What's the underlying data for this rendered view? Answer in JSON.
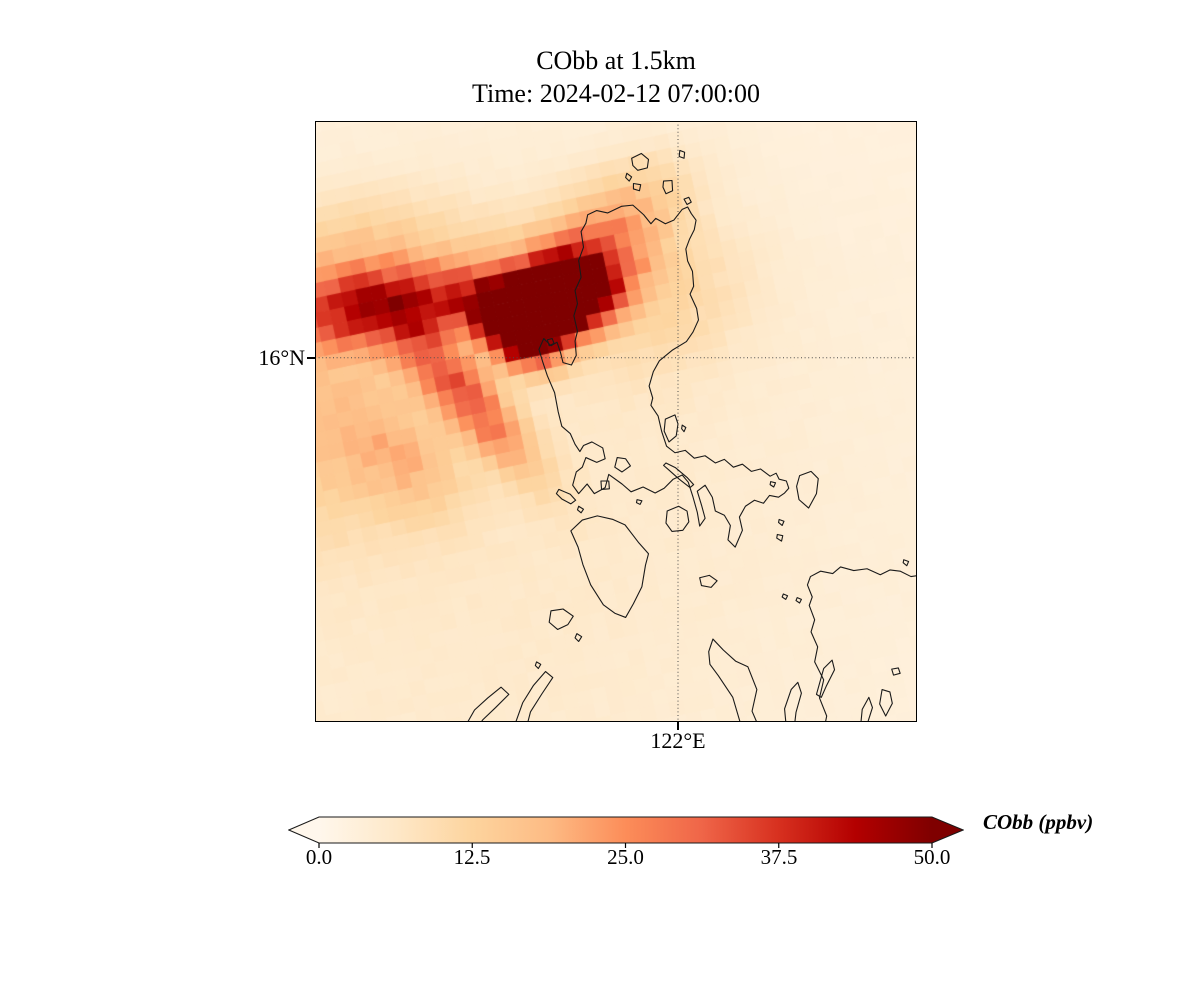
{
  "title": {
    "line1": "CObb at 1.5km",
    "line2": "Time: 2024-02-12 07:00:00"
  },
  "axes": {
    "y_tick_label": "16°N",
    "x_tick_label": "122°E"
  },
  "colorbar": {
    "label": "CObb (ppbv)",
    "tick_labels": [
      "0.0",
      "12.5",
      "25.0",
      "37.5",
      "50.0"
    ],
    "vmin": 0,
    "vmax": 50,
    "extend": "both",
    "colormap": "OrRd",
    "stops": [
      "#fff7ec",
      "#fee8c8",
      "#fdd49e",
      "#fdbb84",
      "#fc8d59",
      "#ef6548",
      "#d7301f",
      "#b30000",
      "#7f0000"
    ]
  },
  "chart_data": {
    "type": "heatmap",
    "title": "CObb at 1.5km",
    "subtitle": "Time: 2024-02-12 07:00:00",
    "variable": "CObb",
    "units": "ppbv",
    "level": "1.5 km",
    "time": "2024-02-12 07:00:00",
    "region": "Luzon / Philippines map with coastlines",
    "projection_gridlines": {
      "lat": [
        {
          "label": "16°N",
          "y_frac": 0.394
        }
      ],
      "lon": [
        {
          "label": "122°E",
          "x_frac": 0.603
        }
      ]
    },
    "value_range": [
      0,
      50
    ],
    "description": "Biomass-burning CO plume: dark-red core (>50 ppbv) over northwestern Luzon near 16.5N/120.7E, a roughly zonal band (~25-30 ppbv) extending west to the map edge, and a diagonal tail (~15-25 ppbv) trailing southwest over the South China Sea; background ~2-5 ppbv.",
    "grid_n": 41,
    "mesh_rotation_deg": -12,
    "field": {
      "base": 1.8,
      "blobs": [
        {
          "x": 0.405,
          "y": 0.298,
          "amp": 78,
          "sa": 0.062,
          "sb": 0.042,
          "rot": -25
        },
        {
          "x": 0.335,
          "y": 0.345,
          "amp": 52,
          "sa": 0.048,
          "sb": 0.034,
          "rot": 42
        },
        {
          "x": 0.16,
          "y": 0.305,
          "amp": 28,
          "sa": 0.17,
          "sb": 0.042,
          "rot": -7
        },
        {
          "x": 0.12,
          "y": 0.275,
          "amp": 10,
          "sa": 0.2,
          "sb": 0.075,
          "rot": -9
        },
        {
          "x": 0.05,
          "y": 0.21,
          "amp": 6,
          "sa": 0.11,
          "sb": 0.06,
          "rot": -18
        },
        {
          "x": 0.245,
          "y": 0.455,
          "amp": 27,
          "sa": 0.115,
          "sb": 0.035,
          "rot": 48
        },
        {
          "x": 0.15,
          "y": 0.565,
          "amp": 10,
          "sa": 0.08,
          "sb": 0.05,
          "rot": 48
        },
        {
          "x": 0.46,
          "y": 0.21,
          "amp": 15,
          "sa": 0.09,
          "sb": 0.055,
          "rot": -33
        },
        {
          "x": 0.53,
          "y": 0.13,
          "amp": 6,
          "sa": 0.08,
          "sb": 0.05,
          "rot": -33
        },
        {
          "x": 0.57,
          "y": 0.3,
          "amp": 7,
          "sa": 0.11,
          "sb": 0.09,
          "rot": -20
        },
        {
          "x": 0.01,
          "y": 0.46,
          "amp": 8,
          "sa": 0.1,
          "sb": 0.11,
          "rot": 0
        },
        {
          "x": 0.0,
          "y": 0.6,
          "amp": 5,
          "sa": 0.13,
          "sb": 0.1,
          "rot": 0
        },
        {
          "x": 0.15,
          "y": 0.75,
          "amp": 3,
          "sa": 0.5,
          "sb": 0.45,
          "rot": 0
        },
        {
          "x": 0.45,
          "y": 0.5,
          "amp": 1.5,
          "sa": 0.55,
          "sb": 0.5,
          "rot": 0
        }
      ]
    }
  }
}
